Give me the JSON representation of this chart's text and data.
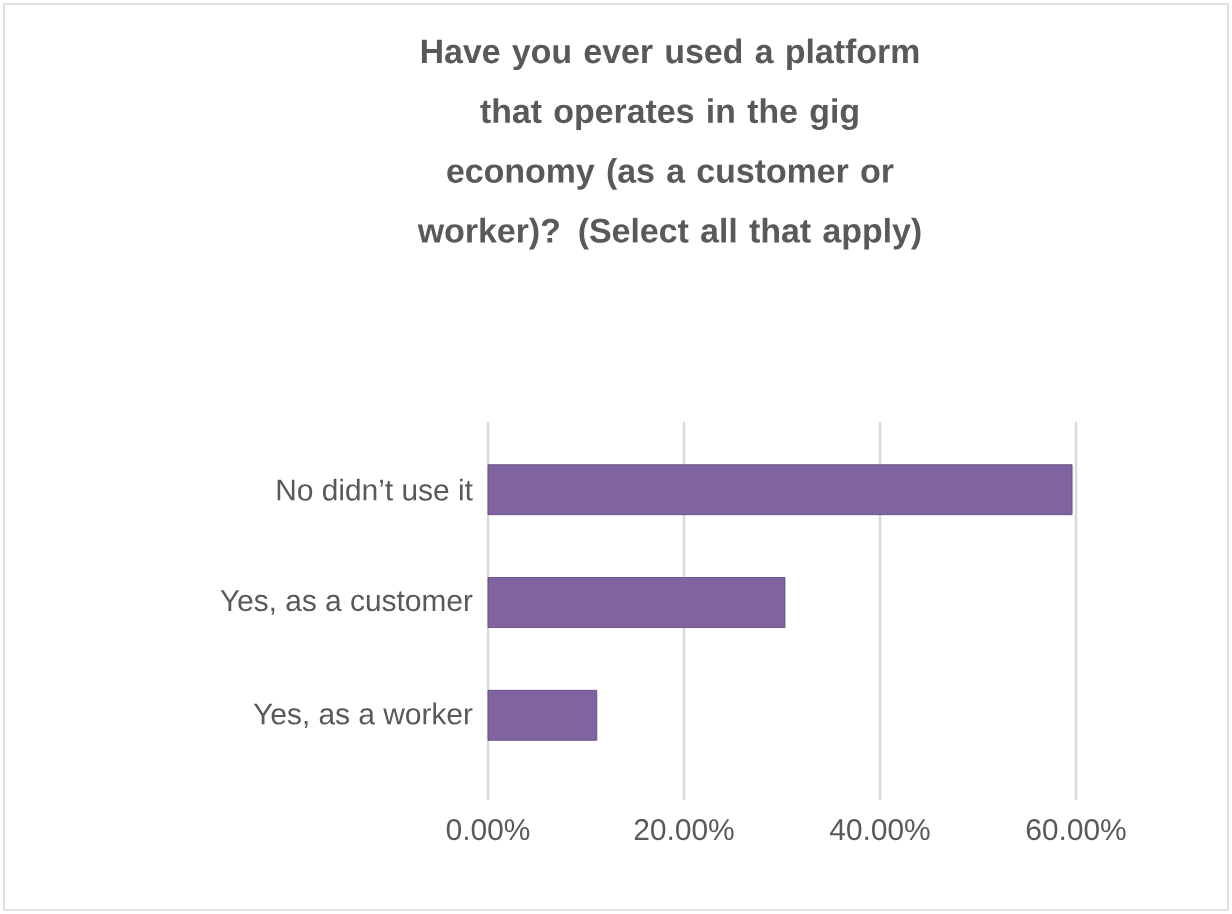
{
  "chart_data": {
    "type": "bar",
    "orientation": "horizontal",
    "title": "Have you ever used a platform that operates in the gig economy (as a customer or worker)? (Select all that apply)",
    "categories": [
      "No didn’t use it",
      "Yes, as a customer",
      "Yes, as a worker"
    ],
    "values": [
      59.6,
      30.3,
      11.1
    ],
    "color": "#8064a2",
    "xlim": [
      0,
      60
    ],
    "xticks": [
      {
        "value": 0,
        "label": "0.00%"
      },
      {
        "value": 20,
        "label": "20.00%"
      },
      {
        "value": 40,
        "label": "40.00%"
      },
      {
        "value": 60,
        "label": "60.00%"
      }
    ],
    "grid": "x"
  }
}
